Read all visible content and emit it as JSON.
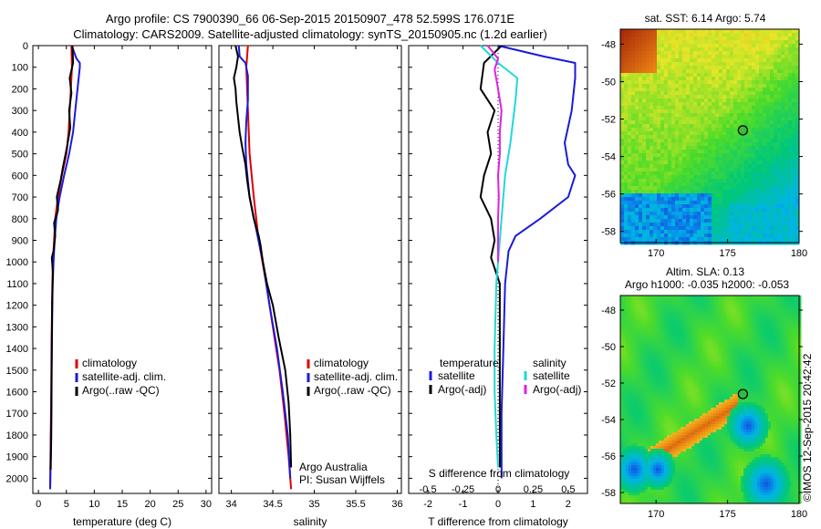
{
  "header": {
    "line1": "Argo profile: CS 7900390_66 06-Sep-2015 20150907_478 52.599S 176.071E",
    "line2": "Climatology: CARS2009. Satellite-adjusted climatology: synTS_20150905.nc (1.2d earlier)"
  },
  "colors": {
    "clim": "#e00000",
    "sat": "#1a1adc",
    "argo": "#000000",
    "sat_alt": "#22d8d8",
    "argo_alt": "#e020e0"
  },
  "chart_data": [
    {
      "type": "line",
      "id": "temperature",
      "xlabel": "temperature (deg C)",
      "ylabel": "",
      "xlim": [
        -1,
        31
      ],
      "ylim": [
        2070,
        0
      ],
      "xticks": [
        0,
        5,
        10,
        15,
        20,
        25,
        30
      ],
      "yticks": [
        0,
        100,
        200,
        300,
        400,
        500,
        600,
        700,
        800,
        900,
        1000,
        1100,
        1200,
        1300,
        1400,
        1500,
        1600,
        1700,
        1800,
        1900,
        2000
      ],
      "legend": [
        "climatology",
        "satellite-adj. clim.",
        "Argo(..raw -QC)"
      ],
      "series": [
        {
          "name": "climatology",
          "color": "clim",
          "points": [
            [
              5.9,
              0
            ],
            [
              6.0,
              100
            ],
            [
              5.8,
              200
            ],
            [
              5.6,
              300
            ],
            [
              5.4,
              400
            ],
            [
              5.0,
              500
            ],
            [
              4.2,
              600
            ],
            [
              3.5,
              700
            ],
            [
              3.0,
              800
            ],
            [
              2.8,
              900
            ],
            [
              2.6,
              1000
            ],
            [
              2.5,
              1100
            ],
            [
              2.45,
              1200
            ],
            [
              2.4,
              1300
            ],
            [
              2.35,
              1400
            ],
            [
              2.3,
              1600
            ],
            [
              2.2,
              1800
            ],
            [
              2.1,
              2050
            ]
          ]
        },
        {
          "name": "satellite-adj. clim.",
          "color": "sat",
          "points": [
            [
              5.95,
              0
            ],
            [
              6.8,
              60
            ],
            [
              7.4,
              80
            ],
            [
              7.4,
              100
            ],
            [
              7.0,
              200
            ],
            [
              6.6,
              300
            ],
            [
              6.2,
              400
            ],
            [
              5.5,
              500
            ],
            [
              4.6,
              600
            ],
            [
              3.8,
              700
            ],
            [
              3.2,
              800
            ],
            [
              2.9,
              900
            ],
            [
              2.7,
              1000
            ],
            [
              2.55,
              1100
            ],
            [
              2.45,
              1300
            ],
            [
              2.35,
              1500
            ],
            [
              2.3,
              1700
            ],
            [
              2.2,
              1900
            ],
            [
              2.1,
              2050
            ]
          ]
        },
        {
          "name": "Argo(..raw -QC)",
          "color": "argo",
          "points": [
            [
              6.1,
              0
            ],
            [
              6.2,
              80
            ],
            [
              5.6,
              150
            ],
            [
              5.9,
              220
            ],
            [
              5.5,
              300
            ],
            [
              5.7,
              380
            ],
            [
              5.1,
              470
            ],
            [
              4.4,
              560
            ],
            [
              4.0,
              620
            ],
            [
              3.3,
              700
            ],
            [
              3.5,
              760
            ],
            [
              2.8,
              820
            ],
            [
              3.0,
              880
            ],
            [
              2.7,
              950
            ],
            [
              2.4,
              980
            ],
            [
              2.6,
              1050
            ],
            [
              2.45,
              1200
            ],
            [
              2.4,
              1400
            ],
            [
              2.35,
              1600
            ],
            [
              2.3,
              1800
            ],
            [
              2.2,
              1960
            ]
          ]
        }
      ]
    },
    {
      "type": "line",
      "id": "salinity",
      "xlabel": "salinity",
      "xlim": [
        33.85,
        36.05
      ],
      "ylim": [
        2070,
        0
      ],
      "xticks": [
        34,
        34.5,
        35,
        35.5,
        36
      ],
      "legend": [
        "climatology",
        "satellite-adj. clim.",
        "Argo(..raw -QC)"
      ],
      "annotation": [
        "Argo Australia",
        "PI: Susan Wijffels"
      ],
      "series": [
        {
          "name": "climatology",
          "color": "clim",
          "points": [
            [
              34.2,
              0
            ],
            [
              34.18,
              100
            ],
            [
              34.19,
              200
            ],
            [
              34.2,
              300
            ],
            [
              34.22,
              500
            ],
            [
              34.27,
              700
            ],
            [
              34.33,
              900
            ],
            [
              34.42,
              1100
            ],
            [
              34.5,
              1300
            ],
            [
              34.58,
              1500
            ],
            [
              34.64,
              1700
            ],
            [
              34.69,
              1900
            ],
            [
              34.72,
              2050
            ]
          ]
        },
        {
          "name": "satellite-adj. clim.",
          "color": "sat",
          "points": [
            [
              34.09,
              0
            ],
            [
              34.1,
              50
            ],
            [
              34.17,
              80
            ],
            [
              34.2,
              140
            ],
            [
              34.2,
              250
            ],
            [
              34.18,
              350
            ],
            [
              34.17,
              450
            ],
            [
              34.18,
              550
            ],
            [
              34.22,
              700
            ],
            [
              34.3,
              850
            ],
            [
              34.38,
              1000
            ],
            [
              34.46,
              1200
            ],
            [
              34.55,
              1400
            ],
            [
              34.62,
              1600
            ],
            [
              34.68,
              1800
            ],
            [
              34.71,
              2000
            ]
          ]
        },
        {
          "name": "Argo(..raw -QC)",
          "color": "argo",
          "points": [
            [
              34.05,
              0
            ],
            [
              34.08,
              50
            ],
            [
              34.06,
              100
            ],
            [
              34.03,
              150
            ],
            [
              34.05,
              200
            ],
            [
              34.06,
              260
            ],
            [
              34.08,
              330
            ],
            [
              34.1,
              400
            ],
            [
              34.13,
              470
            ],
            [
              34.17,
              550
            ],
            [
              34.19,
              620
            ],
            [
              34.22,
              700
            ],
            [
              34.27,
              800
            ],
            [
              34.33,
              880
            ],
            [
              34.35,
              920
            ],
            [
              34.38,
              1000
            ],
            [
              34.43,
              1100
            ],
            [
              34.5,
              1200
            ],
            [
              34.57,
              1350
            ],
            [
              34.65,
              1500
            ],
            [
              34.69,
              1650
            ],
            [
              34.71,
              1800
            ],
            [
              34.72,
              1950
            ]
          ]
        }
      ]
    },
    {
      "type": "line",
      "id": "difference",
      "xlabel": "T difference from climatology",
      "xlabel2": "S difference from climatology",
      "xlim": [
        -2.55,
        2.55
      ],
      "ylim": [
        2070,
        0
      ],
      "xticks": [
        -2,
        -1,
        0,
        1,
        2
      ],
      "xticks2": [
        "-0.5",
        "-0.25",
        "0",
        "0.25",
        "0.5"
      ],
      "legend_left_title": "temperature",
      "legend_right_title": "salinity",
      "legend_left": [
        "satellite",
        "Argo(-adj)"
      ],
      "legend_right": [
        "satellite",
        "Argo(-adj)"
      ],
      "series": [
        {
          "name": "T satellite",
          "color": "sat",
          "points": [
            [
              0.0,
              0
            ],
            [
              1.3,
              50
            ],
            [
              2.2,
              80
            ],
            [
              2.2,
              150
            ],
            [
              2.1,
              300
            ],
            [
              1.9,
              450
            ],
            [
              2.0,
              550
            ],
            [
              2.2,
              600
            ],
            [
              2.0,
              700
            ],
            [
              1.2,
              800
            ],
            [
              0.5,
              880
            ],
            [
              0.3,
              950
            ],
            [
              0.2,
              1100
            ],
            [
              0.15,
              1400
            ],
            [
              0.1,
              1700
            ],
            [
              0.1,
              2000
            ]
          ]
        },
        {
          "name": "T Argo(-adj)",
          "color": "argo",
          "points": [
            [
              0.1,
              0
            ],
            [
              -0.4,
              80
            ],
            [
              -0.5,
              200
            ],
            [
              -0.1,
              300
            ],
            [
              -0.3,
              400
            ],
            [
              -0.2,
              500
            ],
            [
              -0.4,
              600
            ],
            [
              -0.5,
              700
            ],
            [
              -0.2,
              800
            ],
            [
              -0.1,
              900
            ],
            [
              -0.2,
              980
            ],
            [
              0.05,
              1100
            ],
            [
              0.05,
              1400
            ],
            [
              0.05,
              1700
            ],
            [
              0.05,
              1950
            ]
          ]
        },
        {
          "name": "S satellite",
          "color": "sat_alt",
          "points": [
            [
              -0.5,
              0
            ],
            [
              0.0,
              80
            ],
            [
              0.55,
              150
            ],
            [
              0.5,
              250
            ],
            [
              0.35,
              450
            ],
            [
              0.2,
              600
            ],
            [
              0.1,
              800
            ],
            [
              0.0,
              1000
            ],
            [
              -0.05,
              1100
            ],
            [
              -0.1,
              1400
            ],
            [
              -0.1,
              1600
            ],
            [
              -0.05,
              1800
            ],
            [
              0.0,
              1950
            ]
          ]
        },
        {
          "name": "S Argo(-adj)",
          "color": "argo_alt",
          "points": [
            [
              -0.3,
              0
            ],
            [
              0.0,
              60
            ],
            [
              -0.1,
              110
            ],
            [
              0.0,
              200
            ],
            [
              0.1,
              300
            ],
            [
              0.05,
              400
            ],
            [
              0.05,
              500
            ],
            [
              0.0,
              600
            ],
            [
              0.02,
              700
            ],
            [
              0.0,
              800
            ],
            [
              0.0,
              950
            ],
            [
              0.0,
              1000
            ]
          ]
        }
      ]
    },
    {
      "type": "heatmap",
      "id": "sst_map",
      "title": "sat. SST: 6.14 Argo: 5.74",
      "xlim": [
        167.5,
        180
      ],
      "ylim": [
        -58.6,
        -47.2
      ],
      "xticks": [
        170,
        175,
        180
      ],
      "yticks": [
        -48,
        -50,
        -52,
        -54,
        -56,
        -58
      ],
      "argo_position": [
        176.07,
        -52.6
      ]
    },
    {
      "type": "heatmap",
      "id": "sla_map",
      "title": [
        "Altim. SLA: 0.13",
        "Argo h1000: -0.035 h2000: -0.053"
      ],
      "xlim": [
        167.5,
        180
      ],
      "ylim": [
        -58.6,
        -47.2
      ],
      "xticks": [
        170,
        175,
        180
      ],
      "yticks": [
        -48,
        -50,
        -52,
        -54,
        -56,
        -58
      ],
      "argo_position": [
        176.07,
        -52.6
      ]
    }
  ],
  "footer": {
    "stamp": "©IMOS 12-Sep-2015 20:42:42"
  }
}
